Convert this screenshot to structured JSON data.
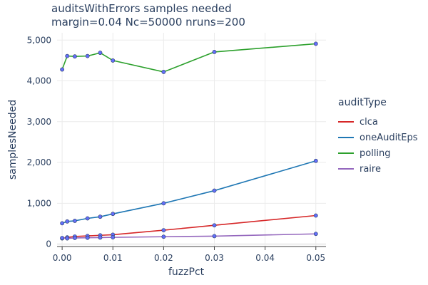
{
  "chart_data": {
    "type": "line",
    "title": "auditsWithErrors samples needed",
    "subtitle": "margin=0.04 Nc=50000 nruns=200",
    "xlabel": "fuzzPct",
    "ylabel": "samplesNeeded",
    "xlim": [
      -0.001,
      0.052
    ],
    "ylim": [
      -60,
      5180
    ],
    "x_ticks": [
      "0.00",
      "0.01",
      "0.02",
      "0.03",
      "0.04",
      "0.05"
    ],
    "y_ticks": [
      "0",
      "1,000",
      "2,000",
      "3,000",
      "4,000",
      "5,000"
    ],
    "x_tick_values": [
      0,
      0.01,
      0.02,
      0.03,
      0.04,
      0.05
    ],
    "y_tick_values": [
      0,
      1000,
      2000,
      3000,
      4000,
      5000
    ],
    "grid": true,
    "legend_title": "auditType",
    "legend_placement": "right",
    "x": [
      0,
      0.001,
      0.0025,
      0.005,
      0.0075,
      0.01,
      0.02,
      0.03,
      0.05
    ],
    "series": [
      {
        "name": "clca",
        "color": "#d62728",
        "values": [
          140,
          165,
          185,
          200,
          215,
          230,
          340,
          460,
          700
        ]
      },
      {
        "name": "oneAuditEps",
        "color": "#1f77b4",
        "values": [
          510,
          555,
          570,
          630,
          670,
          740,
          1000,
          1310,
          2040
        ]
      },
      {
        "name": "polling",
        "color": "#2ca02c",
        "values": [
          4280,
          4610,
          4600,
          4610,
          4690,
          4500,
          4220,
          4710,
          4910
        ]
      },
      {
        "name": "raire",
        "color": "#9467bd",
        "values": [
          150,
          140,
          150,
          155,
          160,
          165,
          180,
          195,
          250
        ]
      }
    ],
    "marker_color": "#636efa"
  }
}
